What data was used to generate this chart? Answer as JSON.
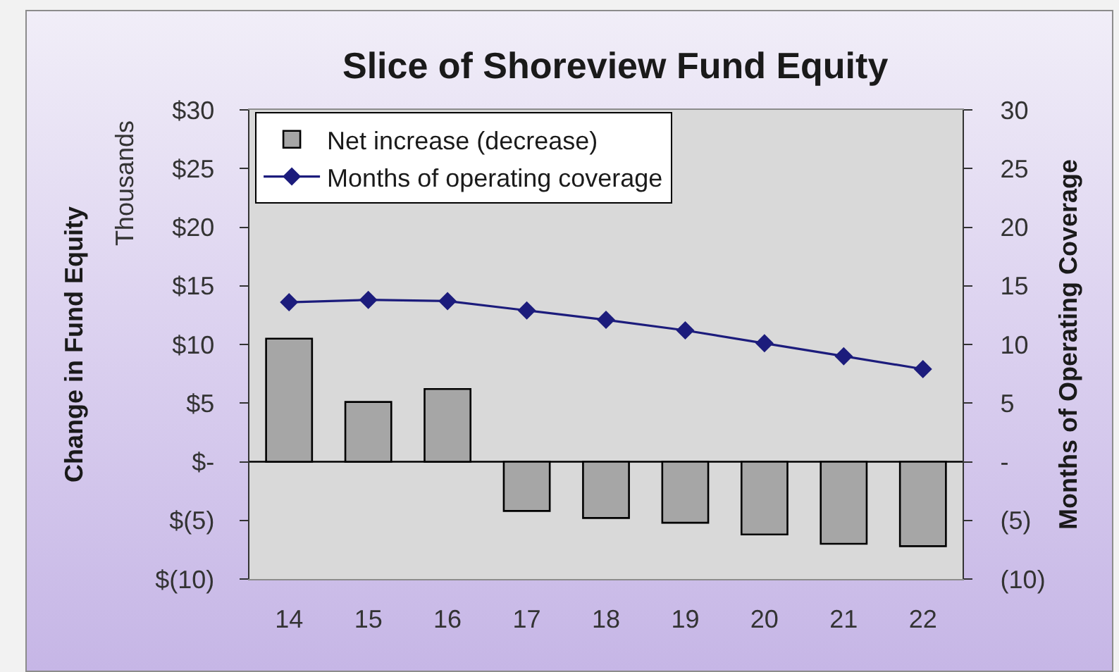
{
  "chart_data": {
    "type": "bar",
    "title": "Slice of Shoreview Fund Equity",
    "ylabel": "Change in Fund Equity",
    "y2label": "Months of Operating Coverage",
    "annotations": [
      "Thousands"
    ],
    "categories": [
      "14",
      "15",
      "16",
      "17",
      "18",
      "19",
      "20",
      "21",
      "22"
    ],
    "series": [
      {
        "name": "Net increase (decrease)",
        "color": "#a6a6a6",
        "values": [
          10.5,
          5.1,
          6.2,
          -4.2,
          -4.8,
          -5.2,
          -6.2,
          -7.0,
          -7.2
        ]
      },
      {
        "name": "Months of operating coverage",
        "type": "line",
        "axis": "y2",
        "color": "#1c1c7c",
        "values": [
          13.6,
          13.8,
          13.7,
          12.9,
          12.1,
          11.2,
          10.1,
          9.0,
          7.9
        ]
      }
    ],
    "ylim": [
      -10,
      30
    ],
    "yticks": [
      {
        "value": -10,
        "label": "$(10)"
      },
      {
        "value": -5,
        "label": "$(5)"
      },
      {
        "value": 0,
        "label": "$-"
      },
      {
        "value": 5,
        "label": "$5"
      },
      {
        "value": 10,
        "label": "$10"
      },
      {
        "value": 15,
        "label": "$15"
      },
      {
        "value": 20,
        "label": "$20"
      },
      {
        "value": 25,
        "label": "$25"
      },
      {
        "value": 30,
        "label": "$30"
      }
    ],
    "y2lim": [
      -10,
      30
    ],
    "y2ticks": [
      {
        "value": -10,
        "label": "(10)"
      },
      {
        "value": -5,
        "label": "(5)"
      },
      {
        "value": 0,
        "label": "-"
      },
      5,
      10,
      15,
      20,
      25,
      30
    ],
    "ref_lines": [
      {
        "axis": "y",
        "value": 0,
        "color": "#000000",
        "line_style": "solid"
      }
    ],
    "legend": "top left",
    "grid": false,
    "marker": "diamond"
  }
}
